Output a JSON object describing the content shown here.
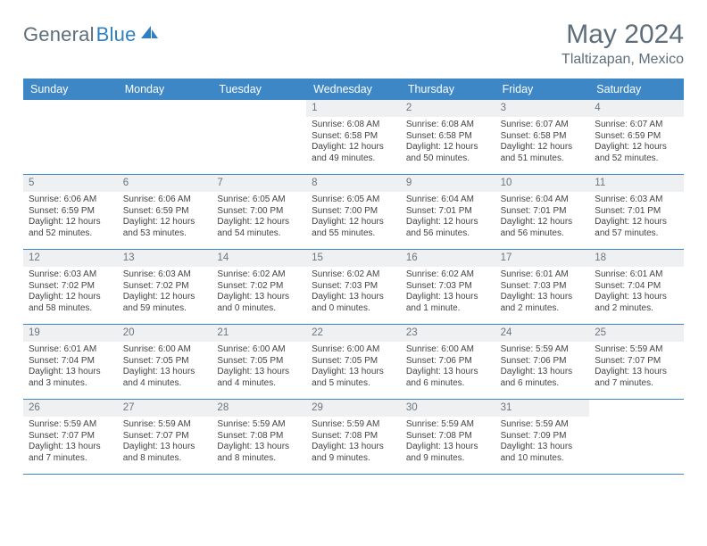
{
  "brand": {
    "name1": "General",
    "name2": "Blue"
  },
  "title": {
    "month": "May 2024",
    "location": "Tlaltizapan, Mexico"
  },
  "day_names": [
    "Sunday",
    "Monday",
    "Tuesday",
    "Wednesday",
    "Thursday",
    "Friday",
    "Saturday"
  ],
  "colors": {
    "header_bar": "#3d87c6",
    "datebar_bg": "#eef0f1",
    "text_muted": "#5e6e7a",
    "rule": "#3d87c6"
  },
  "weeks": [
    [
      {
        "date": "",
        "sunrise": "",
        "sunset": "",
        "daylight": ""
      },
      {
        "date": "",
        "sunrise": "",
        "sunset": "",
        "daylight": ""
      },
      {
        "date": "",
        "sunrise": "",
        "sunset": "",
        "daylight": ""
      },
      {
        "date": "1",
        "sunrise": "Sunrise: 6:08 AM",
        "sunset": "Sunset: 6:58 PM",
        "daylight": "Daylight: 12 hours and 49 minutes."
      },
      {
        "date": "2",
        "sunrise": "Sunrise: 6:08 AM",
        "sunset": "Sunset: 6:58 PM",
        "daylight": "Daylight: 12 hours and 50 minutes."
      },
      {
        "date": "3",
        "sunrise": "Sunrise: 6:07 AM",
        "sunset": "Sunset: 6:58 PM",
        "daylight": "Daylight: 12 hours and 51 minutes."
      },
      {
        "date": "4",
        "sunrise": "Sunrise: 6:07 AM",
        "sunset": "Sunset: 6:59 PM",
        "daylight": "Daylight: 12 hours and 52 minutes."
      }
    ],
    [
      {
        "date": "5",
        "sunrise": "Sunrise: 6:06 AM",
        "sunset": "Sunset: 6:59 PM",
        "daylight": "Daylight: 12 hours and 52 minutes."
      },
      {
        "date": "6",
        "sunrise": "Sunrise: 6:06 AM",
        "sunset": "Sunset: 6:59 PM",
        "daylight": "Daylight: 12 hours and 53 minutes."
      },
      {
        "date": "7",
        "sunrise": "Sunrise: 6:05 AM",
        "sunset": "Sunset: 7:00 PM",
        "daylight": "Daylight: 12 hours and 54 minutes."
      },
      {
        "date": "8",
        "sunrise": "Sunrise: 6:05 AM",
        "sunset": "Sunset: 7:00 PM",
        "daylight": "Daylight: 12 hours and 55 minutes."
      },
      {
        "date": "9",
        "sunrise": "Sunrise: 6:04 AM",
        "sunset": "Sunset: 7:01 PM",
        "daylight": "Daylight: 12 hours and 56 minutes."
      },
      {
        "date": "10",
        "sunrise": "Sunrise: 6:04 AM",
        "sunset": "Sunset: 7:01 PM",
        "daylight": "Daylight: 12 hours and 56 minutes."
      },
      {
        "date": "11",
        "sunrise": "Sunrise: 6:03 AM",
        "sunset": "Sunset: 7:01 PM",
        "daylight": "Daylight: 12 hours and 57 minutes."
      }
    ],
    [
      {
        "date": "12",
        "sunrise": "Sunrise: 6:03 AM",
        "sunset": "Sunset: 7:02 PM",
        "daylight": "Daylight: 12 hours and 58 minutes."
      },
      {
        "date": "13",
        "sunrise": "Sunrise: 6:03 AM",
        "sunset": "Sunset: 7:02 PM",
        "daylight": "Daylight: 12 hours and 59 minutes."
      },
      {
        "date": "14",
        "sunrise": "Sunrise: 6:02 AM",
        "sunset": "Sunset: 7:02 PM",
        "daylight": "Daylight: 13 hours and 0 minutes."
      },
      {
        "date": "15",
        "sunrise": "Sunrise: 6:02 AM",
        "sunset": "Sunset: 7:03 PM",
        "daylight": "Daylight: 13 hours and 0 minutes."
      },
      {
        "date": "16",
        "sunrise": "Sunrise: 6:02 AM",
        "sunset": "Sunset: 7:03 PM",
        "daylight": "Daylight: 13 hours and 1 minute."
      },
      {
        "date": "17",
        "sunrise": "Sunrise: 6:01 AM",
        "sunset": "Sunset: 7:03 PM",
        "daylight": "Daylight: 13 hours and 2 minutes."
      },
      {
        "date": "18",
        "sunrise": "Sunrise: 6:01 AM",
        "sunset": "Sunset: 7:04 PM",
        "daylight": "Daylight: 13 hours and 2 minutes."
      }
    ],
    [
      {
        "date": "19",
        "sunrise": "Sunrise: 6:01 AM",
        "sunset": "Sunset: 7:04 PM",
        "daylight": "Daylight: 13 hours and 3 minutes."
      },
      {
        "date": "20",
        "sunrise": "Sunrise: 6:00 AM",
        "sunset": "Sunset: 7:05 PM",
        "daylight": "Daylight: 13 hours and 4 minutes."
      },
      {
        "date": "21",
        "sunrise": "Sunrise: 6:00 AM",
        "sunset": "Sunset: 7:05 PM",
        "daylight": "Daylight: 13 hours and 4 minutes."
      },
      {
        "date": "22",
        "sunrise": "Sunrise: 6:00 AM",
        "sunset": "Sunset: 7:05 PM",
        "daylight": "Daylight: 13 hours and 5 minutes."
      },
      {
        "date": "23",
        "sunrise": "Sunrise: 6:00 AM",
        "sunset": "Sunset: 7:06 PM",
        "daylight": "Daylight: 13 hours and 6 minutes."
      },
      {
        "date": "24",
        "sunrise": "Sunrise: 5:59 AM",
        "sunset": "Sunset: 7:06 PM",
        "daylight": "Daylight: 13 hours and 6 minutes."
      },
      {
        "date": "25",
        "sunrise": "Sunrise: 5:59 AM",
        "sunset": "Sunset: 7:07 PM",
        "daylight": "Daylight: 13 hours and 7 minutes."
      }
    ],
    [
      {
        "date": "26",
        "sunrise": "Sunrise: 5:59 AM",
        "sunset": "Sunset: 7:07 PM",
        "daylight": "Daylight: 13 hours and 7 minutes."
      },
      {
        "date": "27",
        "sunrise": "Sunrise: 5:59 AM",
        "sunset": "Sunset: 7:07 PM",
        "daylight": "Daylight: 13 hours and 8 minutes."
      },
      {
        "date": "28",
        "sunrise": "Sunrise: 5:59 AM",
        "sunset": "Sunset: 7:08 PM",
        "daylight": "Daylight: 13 hours and 8 minutes."
      },
      {
        "date": "29",
        "sunrise": "Sunrise: 5:59 AM",
        "sunset": "Sunset: 7:08 PM",
        "daylight": "Daylight: 13 hours and 9 minutes."
      },
      {
        "date": "30",
        "sunrise": "Sunrise: 5:59 AM",
        "sunset": "Sunset: 7:08 PM",
        "daylight": "Daylight: 13 hours and 9 minutes."
      },
      {
        "date": "31",
        "sunrise": "Sunrise: 5:59 AM",
        "sunset": "Sunset: 7:09 PM",
        "daylight": "Daylight: 13 hours and 10 minutes."
      },
      {
        "date": "",
        "sunrise": "",
        "sunset": "",
        "daylight": ""
      }
    ]
  ]
}
